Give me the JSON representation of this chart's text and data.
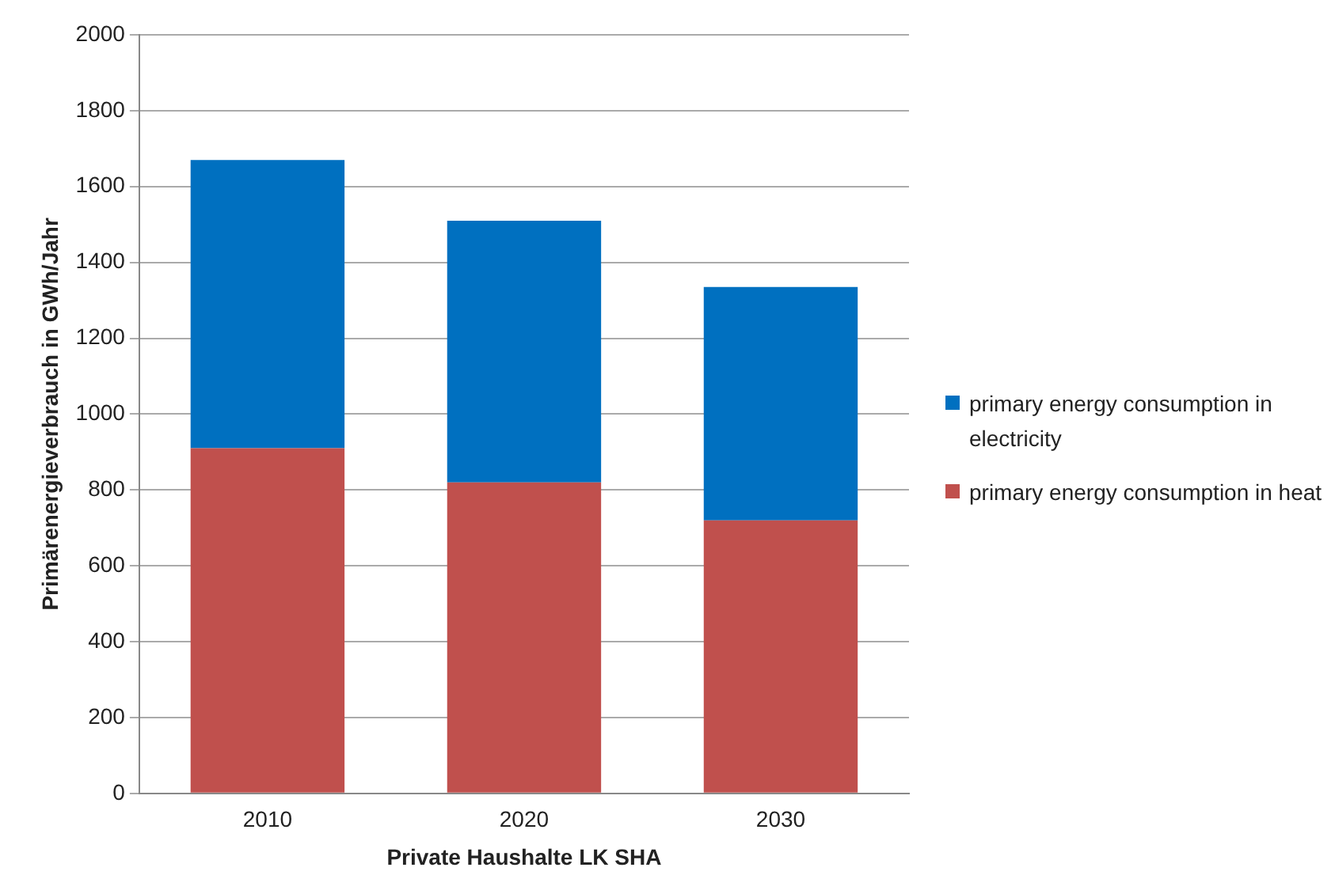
{
  "chart_data": {
    "type": "bar",
    "stacked": true,
    "xlabel": "Private Haushalte LK SHA",
    "ylabel": "Primärenergieverbrauch in GWh/Jahr",
    "categories": [
      "2010",
      "2020",
      "2030"
    ],
    "series": [
      {
        "name": "primary energy consumption in heat",
        "color": "#c0504d",
        "values": [
          910,
          820,
          720
        ]
      },
      {
        "name": "primary energy consumption in electricity",
        "color": "#0070c0",
        "values": [
          760,
          690,
          615
        ]
      }
    ],
    "ylim": [
      0,
      2000
    ],
    "yticks": [
      0,
      200,
      400,
      600,
      800,
      1000,
      1200,
      1400,
      1600,
      1800,
      2000
    ],
    "grid": "y",
    "legend": "right"
  }
}
